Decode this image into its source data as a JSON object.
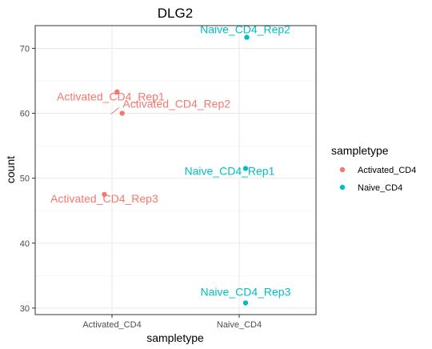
{
  "chart_data": {
    "type": "scatter",
    "title": "DLG2",
    "xlabel": "sampletype",
    "ylabel": "count",
    "categories": [
      "Activated_CD4",
      "Naive_CD4"
    ],
    "yticks": [
      30,
      40,
      50,
      60,
      70
    ],
    "ylim": [
      29,
      73.5
    ],
    "grid": true,
    "legend": {
      "title": "sampletype",
      "position": "right",
      "entries": [
        {
          "label": "Activated_CD4",
          "color": "#F8766D"
        },
        {
          "label": "Naive_CD4",
          "color": "#00BFC4"
        }
      ]
    },
    "points": [
      {
        "category": "Activated_CD4",
        "jitter": 0.04,
        "y": 63.3,
        "label": "Activated_CD4_Rep1",
        "color": "#F8766D"
      },
      {
        "category": "Activated_CD4",
        "jitter": 0.08,
        "y": 60.0,
        "label": "Activated_CD4_Rep2",
        "color": "#F8766D"
      },
      {
        "category": "Activated_CD4",
        "jitter": -0.06,
        "y": 47.5,
        "label": "Activated_CD4_Rep3",
        "color": "#F8766D"
      },
      {
        "category": "Naive_CD4",
        "jitter": 0.06,
        "y": 71.7,
        "label": "Naive_CD4_Rep2",
        "color": "#00BFC4"
      },
      {
        "category": "Naive_CD4",
        "jitter": 0.05,
        "y": 51.5,
        "label": "Naive_CD4_Rep1",
        "color": "#00BFC4"
      },
      {
        "category": "Naive_CD4",
        "jitter": 0.05,
        "y": 30.8,
        "label": "Naive_CD4_Rep3",
        "color": "#00BFC4"
      }
    ]
  }
}
